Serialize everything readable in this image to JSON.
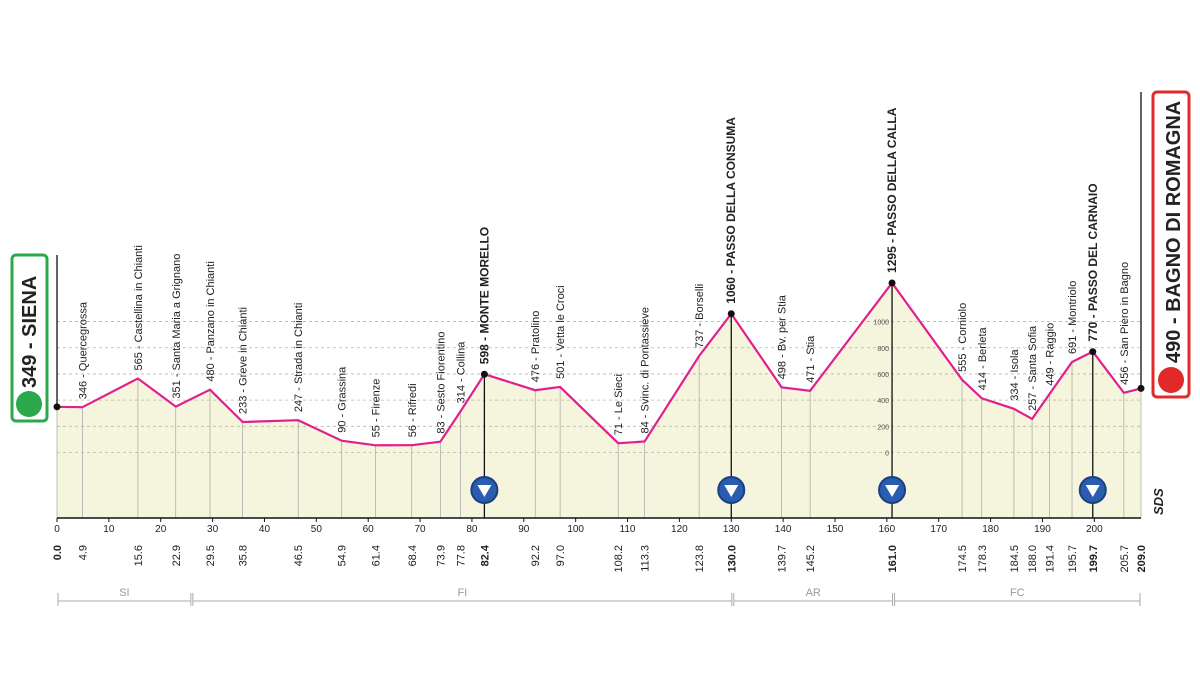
{
  "chart_data": {
    "type": "line",
    "x": [
      0.0,
      4.9,
      15.6,
      22.9,
      29.5,
      35.8,
      46.5,
      54.9,
      61.4,
      68.4,
      73.9,
      77.8,
      82.4,
      92.2,
      97.0,
      108.2,
      113.3,
      123.8,
      130.0,
      139.7,
      145.2,
      161.0,
      174.5,
      178.3,
      184.5,
      188.0,
      191.4,
      195.7,
      199.7,
      205.7,
      209.0
    ],
    "x_labels": [
      "0.0",
      "4.9",
      "15.6",
      "22.9",
      "29.5",
      "35.8",
      "46.5",
      "54.9",
      "61.4",
      "68.4",
      "73.9",
      "77.8",
      "82.4",
      "92.2",
      "97.0",
      "108.2",
      "113.3",
      "123.8",
      "130.0",
      "139.7",
      "145.2",
      "161.0",
      "174.5",
      "178.3",
      "184.5",
      "188.0",
      "191.4",
      "195.7",
      "199.7",
      "205.7",
      "209.0"
    ],
    "values": [
      349,
      346,
      565,
      351,
      480,
      233,
      247,
      90,
      55,
      56,
      83,
      314,
      598,
      476,
      501,
      71,
      84,
      737,
      1060,
      498,
      471,
      1295,
      555,
      414,
      334,
      257,
      449,
      691,
      770,
      456,
      490
    ],
    "value_labels": [
      "349 - SIENA",
      "346 - Quercegrossa",
      "565 - Castellina in Chianti",
      "351 - Santa Maria a Grignano",
      "480 - Panzano in Chianti",
      "233 - Greve in Chianti",
      "247 - Strada in Chianti",
      "90 - Grassina",
      "55 - Firenze",
      "56 - Rifredi",
      "83 - Sesto Fiorentino",
      "314 - Collina",
      "598 - MONTE MORELLO",
      "476 - Pratolino",
      "501 - Vetta le Croci",
      "71 - Le Sieci",
      "84 - Svinc. di Pontassieve",
      "737 - Borselli",
      "1060 - PASSO DELLA CONSUMA",
      "498 - Bv. per Stia",
      "471 - Stia",
      "1295 - PASSO DELLA CALLA",
      "555 - Corniolo",
      "414 - Berleta",
      "334 - Isola",
      "257 - Santa Sofia",
      "449 - Raggio",
      "691 - Montriolo",
      "770 - PASSO DEL CARNAIO",
      "456 - San Piero in Bagno",
      "490 - BAGNO DI ROMAGNA"
    ],
    "summits": [
      12,
      18,
      21,
      28
    ],
    "color": "#e0208f",
    "fill": "#f5f4dc",
    "xlim": [
      0,
      209
    ],
    "xticks": [
      0,
      10,
      20,
      30,
      40,
      50,
      60,
      70,
      80,
      90,
      100,
      110,
      120,
      130,
      140,
      150,
      160,
      170,
      180,
      190,
      200
    ],
    "ylim": [
      -500,
      1600
    ],
    "yticks": [
      0,
      200,
      400,
      600,
      800,
      1000
    ],
    "grid": true,
    "regions": [
      "SI",
      "FI",
      "AR",
      "FC"
    ],
    "region_bounds": [
      0,
      26,
      130.3,
      161.3,
      209
    ],
    "logo_text": "SDS"
  }
}
